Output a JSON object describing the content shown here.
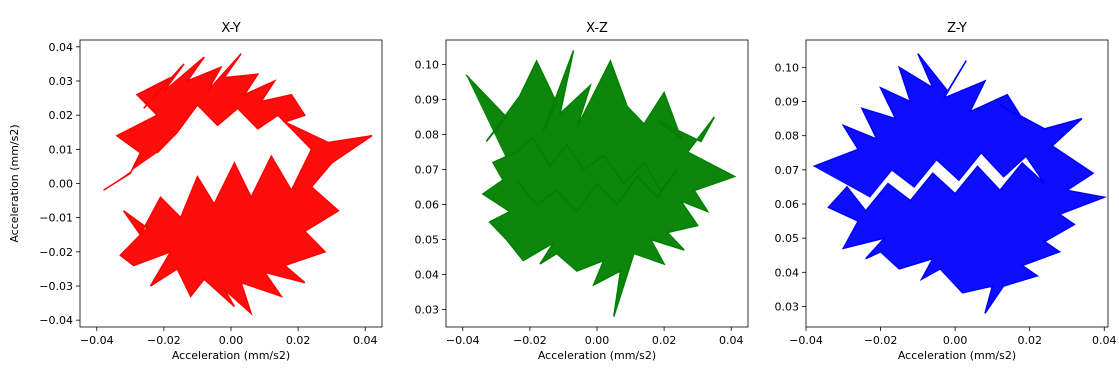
{
  "chart_data": [
    {
      "type": "line",
      "title": "X-Y",
      "xlabel": "Acceleration (mm/s2)",
      "ylabel": "Acceleration (mm/s2)",
      "xlim": [
        -0.045,
        0.045
      ],
      "ylim": [
        -0.042,
        0.042
      ],
      "xticks": [
        "−0.04",
        "−0.02",
        "0.00",
        "0.02",
        "0.04"
      ],
      "yticks": [
        "−0.04",
        "−0.03",
        "−0.02",
        "−0.01",
        "0.00",
        "0.01",
        "0.02",
        "0.03",
        "0.04"
      ],
      "color": "#ff0000",
      "grid": false,
      "series": [
        {
          "x": [
            -0.038,
            -0.03,
            -0.027,
            -0.034,
            -0.022,
            -0.028,
            -0.018,
            -0.026,
            -0.014,
            -0.02,
            -0.008,
            -0.013,
            -0.003,
            -0.007,
            0.003,
            -0.002,
            0.008,
            0.004,
            0.013,
            0.009,
            0.018,
            0.022,
            0.016,
            0.029,
            0.042,
            0.03,
            0.024,
            0.032,
            0.022,
            0.028,
            0.016,
            0.022,
            0.01,
            0.015,
            0.003,
            0.006,
            -0.002,
            0.001,
            -0.008,
            -0.012,
            -0.016,
            -0.024,
            -0.018,
            -0.029,
            -0.033,
            -0.025,
            -0.032,
            -0.027,
            -0.021,
            -0.015,
            -0.01,
            -0.005,
            0.001,
            0.006,
            0.012,
            0.018,
            0.024,
            0.02,
            0.014,
            0.008,
            0.002,
            -0.004,
            -0.01,
            -0.016,
            -0.022
          ],
          "y": [
            -0.002,
            0.003,
            0.009,
            0.014,
            0.02,
            0.026,
            0.031,
            0.022,
            0.035,
            0.027,
            0.037,
            0.03,
            0.034,
            0.027,
            0.038,
            0.031,
            0.032,
            0.026,
            0.03,
            0.024,
            0.026,
            0.02,
            0.018,
            0.012,
            0.014,
            0.006,
            -0.001,
            -0.008,
            -0.014,
            -0.02,
            -0.024,
            -0.029,
            -0.026,
            -0.033,
            -0.029,
            -0.038,
            -0.031,
            -0.036,
            -0.028,
            -0.033,
            -0.025,
            -0.03,
            -0.02,
            -0.024,
            -0.021,
            -0.013,
            -0.008,
            -0.015,
            -0.004,
            -0.01,
            0.002,
            -0.006,
            0.006,
            -0.004,
            0.008,
            -0.002,
            0.01,
            0.014,
            0.02,
            0.016,
            0.022,
            0.017,
            0.023,
            0.015,
            0.009
          ]
        }
      ]
    },
    {
      "type": "line",
      "title": "X-Z",
      "xlabel": "Acceleration (mm/s2)",
      "ylabel": "",
      "xlim": [
        -0.045,
        0.045
      ],
      "ylim": [
        0.025,
        0.107
      ],
      "xticks": [
        "−0.04",
        "−0.02",
        "0.00",
        "0.02",
        "0.04"
      ],
      "yticks": [
        "0.03",
        "0.04",
        "0.05",
        "0.06",
        "0.07",
        "0.08",
        "0.09",
        "0.10"
      ],
      "color": "#008000",
      "grid": false,
      "series": [
        {
          "x": [
            -0.039,
            -0.027,
            -0.033,
            -0.023,
            -0.018,
            -0.012,
            -0.016,
            -0.007,
            -0.011,
            -0.002,
            -0.006,
            0.004,
            0.009,
            0.014,
            0.02,
            0.025,
            0.018,
            0.031,
            0.035,
            0.027,
            0.041,
            0.029,
            0.033,
            0.025,
            0.03,
            0.021,
            0.026,
            0.016,
            0.02,
            0.011,
            0.005,
            0.007,
            -0.001,
            0.002,
            -0.006,
            -0.012,
            -0.017,
            -0.013,
            -0.022,
            -0.027,
            -0.032,
            -0.026,
            -0.034,
            -0.028,
            -0.031,
            -0.024,
            -0.019,
            -0.014,
            -0.009,
            -0.004,
            0.002,
            0.008,
            0.014,
            0.019,
            0.024,
            0.018,
            0.012,
            0.006,
            0.0,
            -0.006,
            -0.012,
            -0.018,
            -0.024
          ],
          "y": [
            0.097,
            0.085,
            0.078,
            0.091,
            0.101,
            0.089,
            0.081,
            0.104,
            0.086,
            0.094,
            0.082,
            0.101,
            0.088,
            0.083,
            0.092,
            0.079,
            0.084,
            0.078,
            0.085,
            0.075,
            0.068,
            0.064,
            0.058,
            0.061,
            0.054,
            0.052,
            0.047,
            0.05,
            0.043,
            0.046,
            0.028,
            0.041,
            0.037,
            0.044,
            0.041,
            0.046,
            0.043,
            0.049,
            0.044,
            0.05,
            0.055,
            0.058,
            0.063,
            0.067,
            0.072,
            0.075,
            0.079,
            0.071,
            0.077,
            0.07,
            0.074,
            0.066,
            0.072,
            0.064,
            0.07,
            0.062,
            0.068,
            0.06,
            0.066,
            0.058,
            0.064,
            0.06,
            0.067
          ]
        }
      ]
    },
    {
      "type": "line",
      "title": "Z-Y",
      "xlabel": "Acceleration (mm/s2)",
      "ylabel": "",
      "xlim": [
        -0.04,
        0.041
      ],
      "ylim": [
        0.024,
        0.108
      ],
      "xticks": [
        "−0.04",
        "−0.02",
        "0.00",
        "0.02",
        "0.04"
      ],
      "yticks": [
        "0.03",
        "0.04",
        "0.05",
        "0.06",
        "0.07",
        "0.08",
        "0.09",
        "0.10"
      ],
      "color": "#0000ff",
      "grid": false,
      "series": [
        {
          "x": [
            -0.038,
            -0.026,
            -0.03,
            -0.021,
            -0.025,
            -0.016,
            -0.02,
            -0.012,
            -0.015,
            -0.006,
            -0.01,
            -0.002,
            0.003,
            -0.003,
            0.008,
            0.004,
            0.014,
            0.018,
            0.012,
            0.024,
            0.034,
            0.026,
            0.037,
            0.03,
            0.04,
            0.028,
            0.032,
            0.024,
            0.028,
            0.018,
            0.022,
            0.013,
            0.008,
            0.01,
            0.002,
            -0.004,
            -0.009,
            -0.006,
            -0.015,
            -0.02,
            -0.024,
            -0.019,
            -0.03,
            -0.026,
            -0.034,
            -0.029,
            -0.024,
            -0.018,
            -0.012,
            -0.006,
            0.0,
            0.006,
            0.012,
            0.018,
            0.024,
            0.019,
            0.013,
            0.007,
            0.001,
            -0.005,
            -0.011,
            -0.017,
            -0.023
          ],
          "y": [
            0.071,
            0.076,
            0.083,
            0.079,
            0.088,
            0.085,
            0.094,
            0.09,
            0.1,
            0.094,
            0.104,
            0.093,
            0.102,
            0.091,
            0.096,
            0.087,
            0.092,
            0.085,
            0.089,
            0.082,
            0.085,
            0.077,
            0.069,
            0.064,
            0.062,
            0.057,
            0.054,
            0.049,
            0.046,
            0.042,
            0.039,
            0.036,
            0.028,
            0.036,
            0.034,
            0.041,
            0.038,
            0.044,
            0.041,
            0.046,
            0.044,
            0.05,
            0.047,
            0.055,
            0.059,
            0.065,
            0.058,
            0.066,
            0.061,
            0.069,
            0.063,
            0.071,
            0.064,
            0.072,
            0.066,
            0.074,
            0.068,
            0.075,
            0.067,
            0.073,
            0.065,
            0.07,
            0.062
          ]
        }
      ]
    }
  ]
}
